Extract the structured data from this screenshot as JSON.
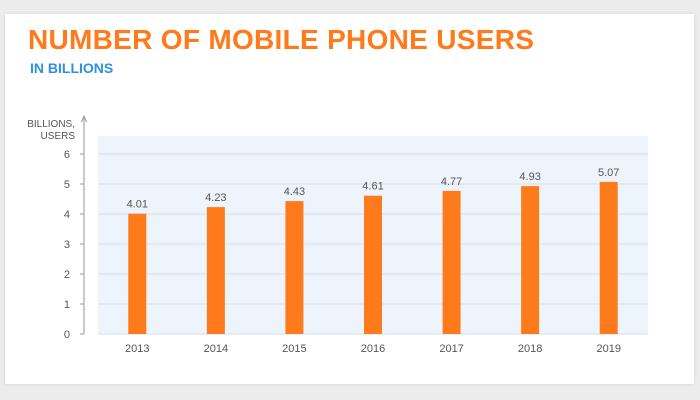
{
  "title": "NUMBER OF MOBILE PHONE USERS",
  "subtitle": "IN BILLIONS",
  "colors": {
    "title": "#ff7a1a",
    "subtitle": "#2f8fe0",
    "bar": "#ff7a1a",
    "plot_background": "#eef4fb",
    "gridline": "#d5deea"
  },
  "chart_data": {
    "type": "bar",
    "title": "NUMBER OF MOBILE PHONE USERS",
    "subtitle": "IN BILLIONS",
    "ylabel_lines": [
      "BILLIONS,",
      "USERS"
    ],
    "xlabel": "",
    "categories": [
      "2013",
      "2014",
      "2015",
      "2016",
      "2017",
      "2018",
      "2019"
    ],
    "values": [
      4.01,
      4.23,
      4.43,
      4.61,
      4.77,
      4.93,
      5.07
    ],
    "data_labels": [
      "4.01",
      "4.23",
      "4.43",
      "4.61",
      "4.77",
      "4.93",
      "5.07"
    ],
    "yticks": [
      "0",
      "1",
      "2",
      "3",
      "4",
      "5",
      "6"
    ],
    "ylim": [
      0,
      6.6
    ],
    "grid": true,
    "legend": "none"
  }
}
